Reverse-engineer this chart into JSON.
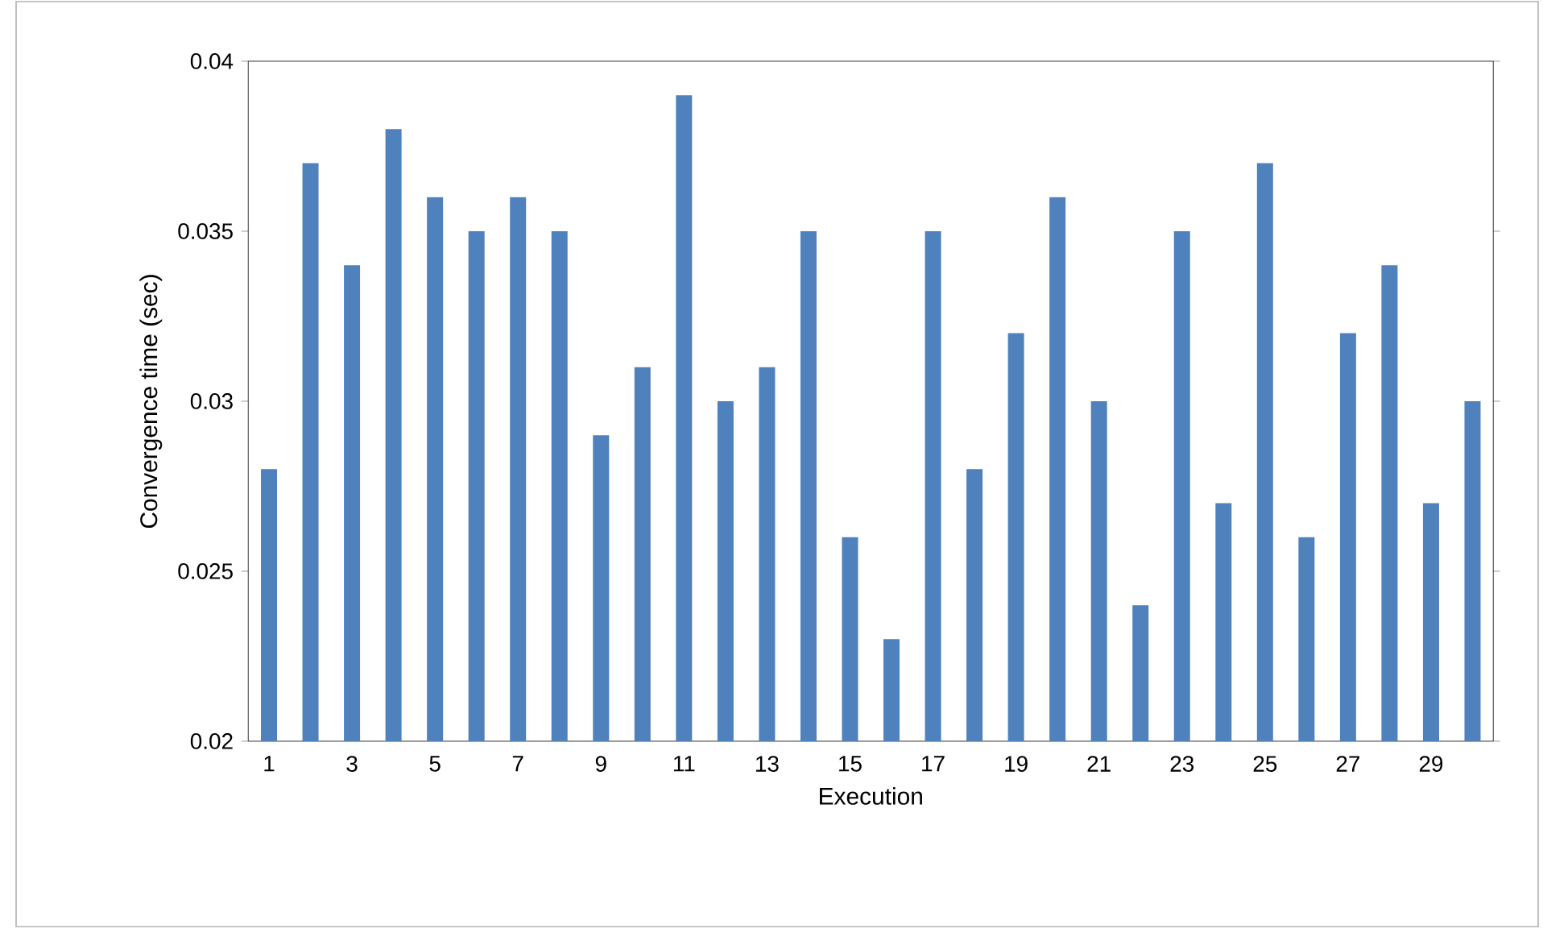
{
  "chart_data": {
    "type": "bar",
    "xlabel": "Execution",
    "ylabel": "Convergence time (sec)",
    "categories": [
      "1",
      null,
      "3",
      null,
      "5",
      null,
      "7",
      null,
      "9",
      null,
      "11",
      null,
      "13",
      null,
      "15",
      null,
      "17",
      null,
      "19",
      null,
      "21",
      null,
      "23",
      null,
      "25",
      null,
      "27",
      null,
      "29",
      null
    ],
    "values": [
      0.028,
      0.037,
      0.034,
      0.038,
      0.036,
      0.035,
      0.036,
      0.035,
      0.029,
      0.031,
      0.039,
      0.03,
      0.031,
      0.035,
      0.026,
      0.023,
      0.035,
      0.028,
      0.032,
      0.036,
      0.03,
      0.024,
      0.035,
      0.027,
      0.037,
      0.026,
      0.032,
      0.034,
      0.027,
      0.03
    ],
    "color": "#4f81bd",
    "ylim": [
      0.02,
      0.04
    ],
    "yticks": [
      0.02,
      0.025,
      0.03,
      0.035,
      0.04
    ]
  }
}
